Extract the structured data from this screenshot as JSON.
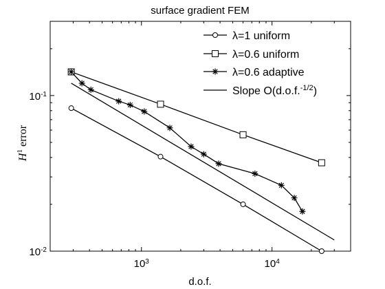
{
  "chart_data": {
    "type": "line",
    "title": "surface gradient FEM",
    "xlabel": "d.o.f.",
    "ylabel": {
      "symbol": "H",
      "sup": "1",
      "text": " error"
    },
    "xscale": "log",
    "yscale": "log",
    "xlim": [
      200,
      40000
    ],
    "ylim": [
      0.01,
      0.3
    ],
    "xticks": [
      {
        "value": 1000,
        "base": "10",
        "exp": "3"
      },
      {
        "value": 10000,
        "base": "10",
        "exp": "4"
      }
    ],
    "yticks": [
      {
        "value": 0.01,
        "base": "10",
        "exp": "-2"
      },
      {
        "value": 0.1,
        "base": "10",
        "exp": "-1"
      }
    ],
    "grid": false,
    "legend": "top-right",
    "series": [
      {
        "name": "λ=1 uniform",
        "marker": "circle",
        "x": [
          290,
          1400,
          6000,
          24000
        ],
        "y": [
          0.083,
          0.0405,
          0.02,
          0.01
        ]
      },
      {
        "name": "λ=0.6 uniform",
        "marker": "square",
        "x": [
          290,
          1400,
          6000,
          24000
        ],
        "y": [
          0.142,
          0.088,
          0.056,
          0.037
        ]
      },
      {
        "name": "λ=0.6 adaptive",
        "marker": "asterisk",
        "x": [
          290,
          350,
          410,
          670,
          820,
          1050,
          1650,
          2400,
          3000,
          3900,
          7400,
          11800,
          14800,
          17100
        ],
        "y": [
          0.142,
          0.12,
          0.109,
          0.092,
          0.087,
          0.079,
          0.062,
          0.047,
          0.042,
          0.0365,
          0.0315,
          0.0265,
          0.022,
          0.018
        ]
      },
      {
        "name": "Slope O(d.o.f.-1/2)",
        "legend_text": "Slope O(d.o.f.",
        "legend_sup": "-1/2",
        "legend_tail": ")",
        "marker": "none",
        "x": [
          290,
          30000
        ],
        "y": [
          0.12,
          0.0118
        ]
      }
    ]
  }
}
